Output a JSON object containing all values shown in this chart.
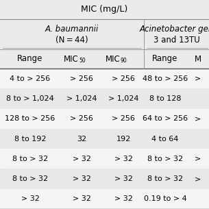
{
  "title": "MIC (mg/L)",
  "group1_line1": "A. baumannii",
  "group1_line2": "(N = 44)",
  "group2_line1": "Acinetobacter gen",
  "group2_line2": "3 and 13TU",
  "subheaders": [
    "Range",
    "MIC50",
    "MIC90",
    "Range",
    "M"
  ],
  "rows": [
    [
      "4 to > 256",
      "> 256",
      "> 256",
      "48 to > 256",
      ">"
    ],
    [
      "8 to > 1,024",
      "> 1,024",
      "> 1,024",
      "8 to 128",
      ""
    ],
    [
      "128 to > 256",
      "> 256",
      "> 256",
      "64 to > 256",
      ">"
    ],
    [
      "8 to 192",
      "32",
      "192",
      "4 to 64",
      ""
    ],
    [
      "8 to > 32",
      "> 32",
      "> 32",
      "8 to > 32",
      ">"
    ],
    [
      "8 to > 32",
      "> 32",
      "> 32",
      "8 to > 32",
      ">"
    ],
    [
      "> 32",
      "> 32",
      "> 32",
      "0.19 to > 4",
      ""
    ]
  ],
  "row_colors": [
    "#f5f5f5",
    "#e8e8e8",
    "#f5f5f5",
    "#e8e8e8",
    "#f5f5f5",
    "#e8e8e8",
    "#f5f5f5"
  ],
  "bg_color": "#ebebeb",
  "figsize": [
    3.05,
    3.05
  ],
  "dpi": 100
}
